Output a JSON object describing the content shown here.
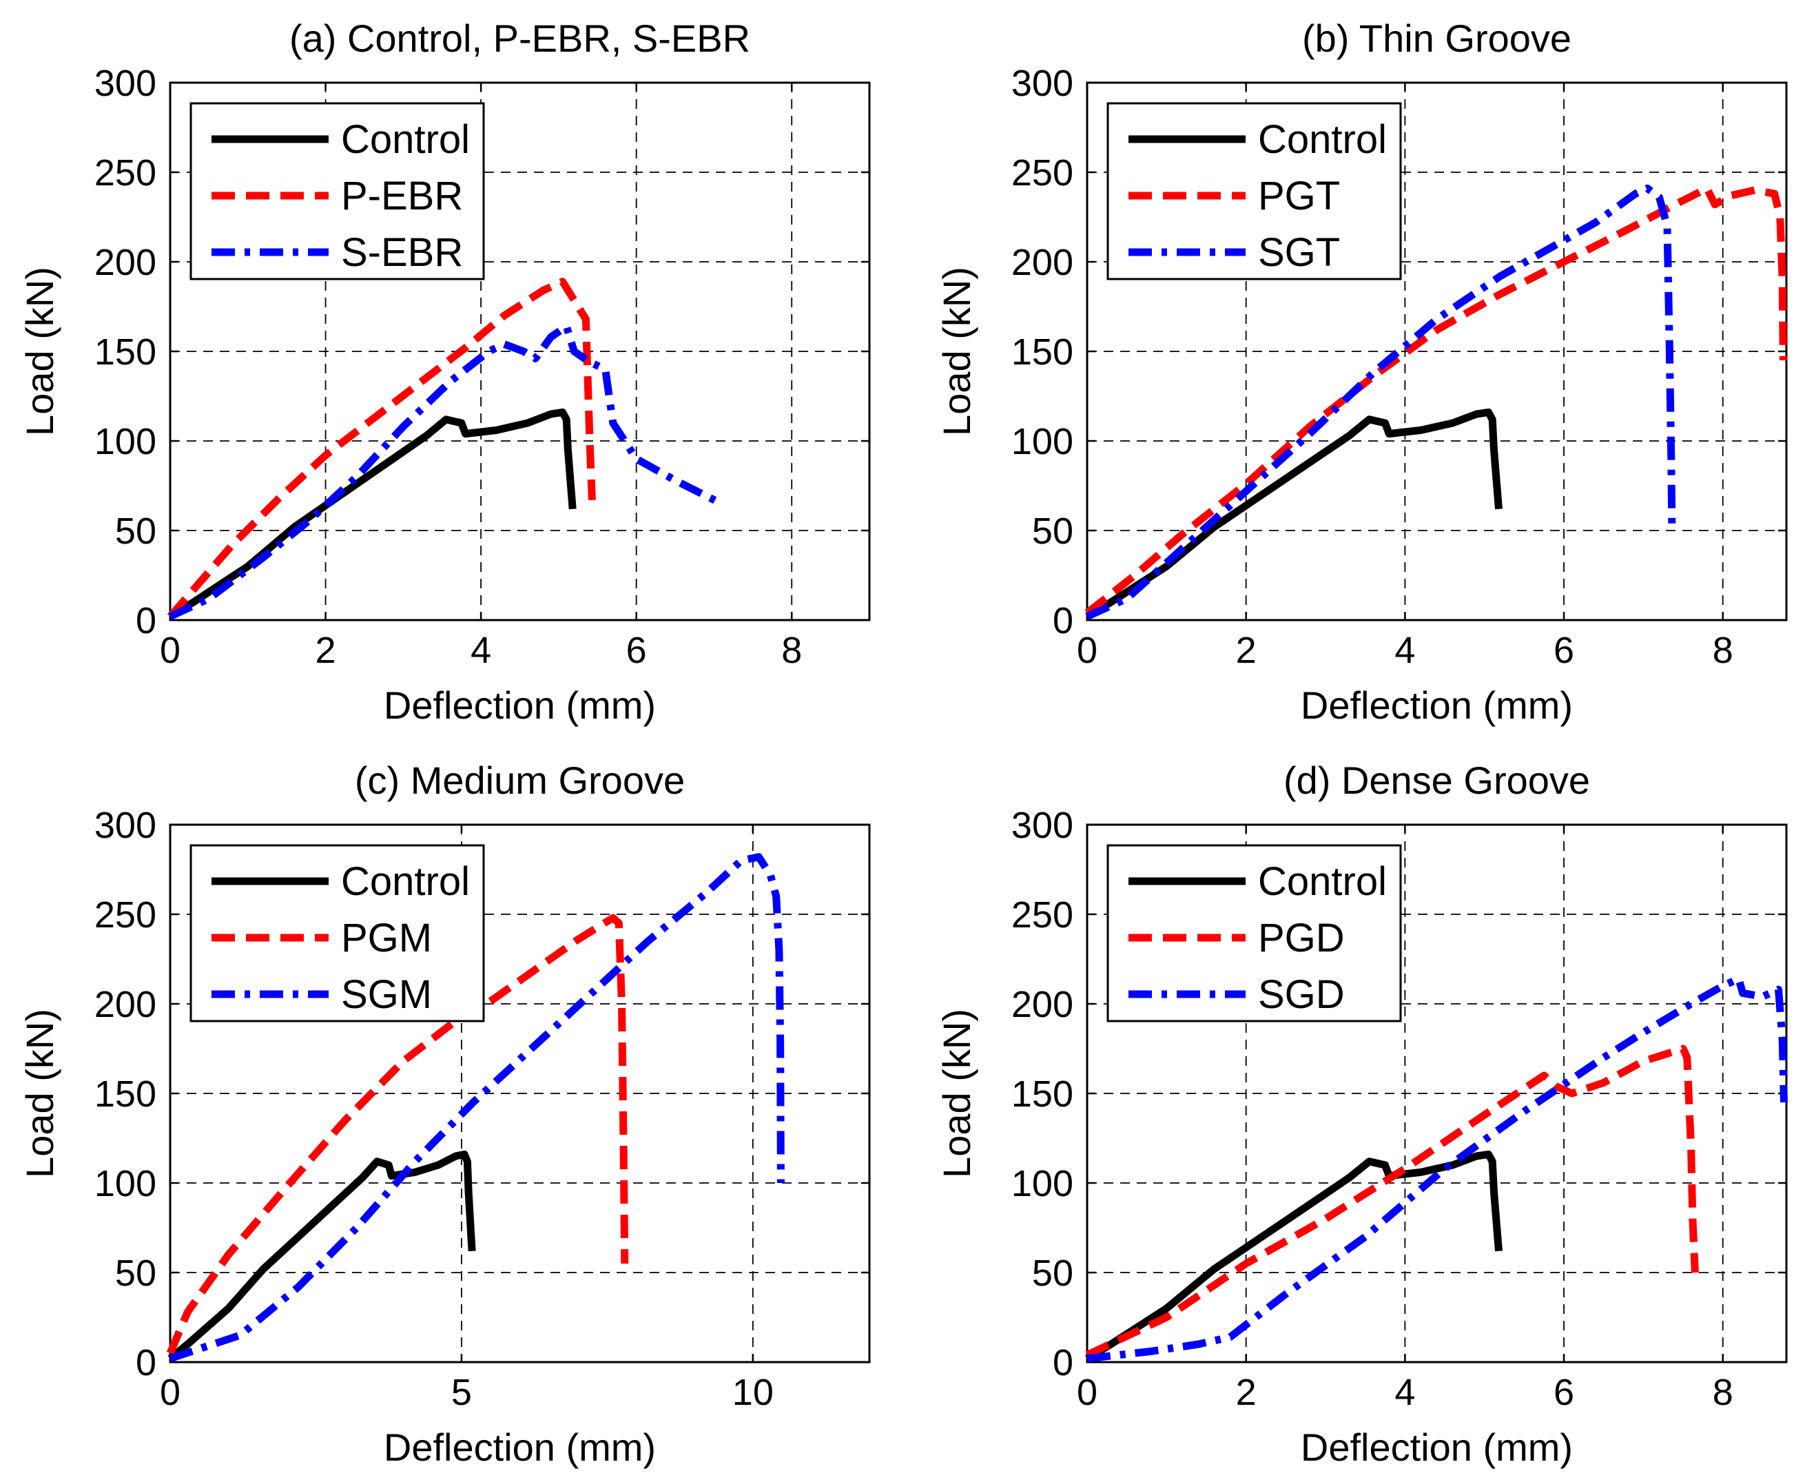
{
  "chart_data": [
    {
      "type": "line",
      "title": "(a) Control, P-EBR, S-EBR",
      "xlabel": "Deflection (mm)",
      "ylabel": "Load (kN)",
      "xlim": [
        0,
        9
      ],
      "ylim": [
        0,
        300
      ],
      "xticks": [
        0,
        2,
        4,
        6,
        8
      ],
      "yticks": [
        0,
        50,
        100,
        150,
        200,
        250,
        300
      ],
      "grid": true,
      "legend": "top-left",
      "series": [
        {
          "name": "Control",
          "color": "#000000",
          "style": "solid",
          "points": [
            [
              0,
              2
            ],
            [
              0.3,
              10
            ],
            [
              1,
              30
            ],
            [
              1.6,
              52
            ],
            [
              2.2,
              70
            ],
            [
              2.8,
              88
            ],
            [
              3.3,
              103
            ],
            [
              3.55,
              112
            ],
            [
              3.75,
              110
            ],
            [
              3.8,
              104
            ],
            [
              4.2,
              106
            ],
            [
              4.6,
              110
            ],
            [
              4.9,
              115
            ],
            [
              5.05,
              116
            ],
            [
              5.1,
              112
            ],
            [
              5.12,
              95
            ],
            [
              5.18,
              62
            ]
          ]
        },
        {
          "name": "P-EBR",
          "color": "#ff0000",
          "style": "dash",
          "points": [
            [
              0,
              2
            ],
            [
              0.2,
              12
            ],
            [
              0.8,
              42
            ],
            [
              1.4,
              68
            ],
            [
              2.0,
              92
            ],
            [
              2.6,
              112
            ],
            [
              3.2,
              132
            ],
            [
              3.8,
              152
            ],
            [
              4.3,
              170
            ],
            [
              4.8,
              184
            ],
            [
              5.05,
              189
            ],
            [
              5.15,
              182
            ],
            [
              5.35,
              168
            ],
            [
              5.4,
              100
            ],
            [
              5.43,
              67
            ]
          ]
        },
        {
          "name": "S-EBR",
          "color": "#0000ff",
          "style": "dashdot",
          "points": [
            [
              0,
              2
            ],
            [
              0.5,
              12
            ],
            [
              1.2,
              35
            ],
            [
              1.8,
              56
            ],
            [
              2.4,
              80
            ],
            [
              3.0,
              108
            ],
            [
              3.6,
              133
            ],
            [
              4.1,
              150
            ],
            [
              4.3,
              154
            ],
            [
              4.55,
              150
            ],
            [
              4.7,
              146
            ],
            [
              4.9,
              158
            ],
            [
              5.1,
              164
            ],
            [
              5.2,
              150
            ],
            [
              5.4,
              144
            ],
            [
              5.6,
              140
            ],
            [
              5.7,
              110
            ],
            [
              6.0,
              90
            ],
            [
              6.5,
              78
            ],
            [
              7.05,
              66
            ]
          ]
        }
      ]
    },
    {
      "type": "line",
      "title": "(b) Thin Groove",
      "xlabel": "Deflection (mm)",
      "ylabel": "Load (kN)",
      "xlim": [
        0,
        8.8
      ],
      "ylim": [
        0,
        300
      ],
      "xticks": [
        0,
        2,
        4,
        6,
        8
      ],
      "yticks": [
        0,
        50,
        100,
        150,
        200,
        250,
        300
      ],
      "grid": true,
      "legend": "top-left",
      "series": [
        {
          "name": "Control",
          "color": "#000000",
          "style": "solid",
          "points": [
            [
              0,
              2
            ],
            [
              0.3,
              10
            ],
            [
              1,
              30
            ],
            [
              1.6,
              52
            ],
            [
              2.2,
              70
            ],
            [
              2.8,
              88
            ],
            [
              3.3,
              103
            ],
            [
              3.55,
              112
            ],
            [
              3.75,
              110
            ],
            [
              3.8,
              104
            ],
            [
              4.2,
              106
            ],
            [
              4.6,
              110
            ],
            [
              4.9,
              115
            ],
            [
              5.05,
              116
            ],
            [
              5.1,
              112
            ],
            [
              5.12,
              95
            ],
            [
              5.18,
              62
            ]
          ]
        },
        {
          "name": "PGT",
          "color": "#ff0000",
          "style": "dash",
          "points": [
            [
              0,
              4
            ],
            [
              0.6,
              25
            ],
            [
              1.2,
              48
            ],
            [
              2.0,
              76
            ],
            [
              2.8,
              108
            ],
            [
              3.6,
              136
            ],
            [
              4.4,
              162
            ],
            [
              5.2,
              182
            ],
            [
              6.0,
              200
            ],
            [
              6.8,
              218
            ],
            [
              7.4,
              232
            ],
            [
              7.8,
              241
            ],
            [
              7.9,
              232
            ],
            [
              8.1,
              237
            ],
            [
              8.4,
              240
            ],
            [
              8.65,
              238
            ],
            [
              8.72,
              225
            ],
            [
              8.75,
              190
            ],
            [
              8.76,
              145
            ]
          ]
        },
        {
          "name": "SGT",
          "color": "#0000ff",
          "style": "dashdot",
          "points": [
            [
              0,
              2
            ],
            [
              0.5,
              12
            ],
            [
              1.2,
              40
            ],
            [
              2.0,
              72
            ],
            [
              2.8,
              104
            ],
            [
              3.6,
              138
            ],
            [
              4.4,
              168
            ],
            [
              5.2,
              192
            ],
            [
              5.8,
              207
            ],
            [
              6.4,
              222
            ],
            [
              6.9,
              238
            ],
            [
              7.05,
              241
            ],
            [
              7.2,
              236
            ],
            [
              7.3,
              220
            ],
            [
              7.33,
              150
            ],
            [
              7.35,
              90
            ],
            [
              7.36,
              50
            ]
          ]
        }
      ]
    },
    {
      "type": "line",
      "title": "(c) Medium Groove",
      "xlabel": "Deflection (mm)",
      "ylabel": "Load (kN)",
      "xlim": [
        0,
        12
      ],
      "ylim": [
        0,
        300
      ],
      "xticks": [
        0,
        5,
        10
      ],
      "yticks": [
        0,
        50,
        100,
        150,
        200,
        250,
        300
      ],
      "grid": true,
      "legend": "top-left",
      "series": [
        {
          "name": "Control",
          "color": "#000000",
          "style": "solid",
          "points": [
            [
              0,
              2
            ],
            [
              0.3,
              10
            ],
            [
              1,
              30
            ],
            [
              1.6,
              52
            ],
            [
              2.2,
              70
            ],
            [
              2.8,
              88
            ],
            [
              3.3,
              103
            ],
            [
              3.55,
              112
            ],
            [
              3.75,
              110
            ],
            [
              3.8,
              104
            ],
            [
              4.2,
              106
            ],
            [
              4.6,
              110
            ],
            [
              4.9,
              115
            ],
            [
              5.05,
              116
            ],
            [
              5.1,
              112
            ],
            [
              5.12,
              95
            ],
            [
              5.18,
              62
            ]
          ]
        },
        {
          "name": "PGM",
          "color": "#ff0000",
          "style": "dash",
          "points": [
            [
              0,
              5
            ],
            [
              0.3,
              28
            ],
            [
              1.0,
              60
            ],
            [
              2.0,
              98
            ],
            [
              3.0,
              135
            ],
            [
              4.0,
              168
            ],
            [
              5.0,
              193
            ],
            [
              5.3,
              197
            ],
            [
              6.0,
              213
            ],
            [
              7.0,
              236
            ],
            [
              7.6,
              248
            ],
            [
              7.7,
              245
            ],
            [
              7.75,
              200
            ],
            [
              7.78,
              120
            ],
            [
              7.8,
              55
            ]
          ]
        },
        {
          "name": "SGM",
          "color": "#0000ff",
          "style": "dashdot",
          "points": [
            [
              0,
              2
            ],
            [
              1.2,
              15
            ],
            [
              2.2,
              42
            ],
            [
              3.2,
              75
            ],
            [
              4.2,
              112
            ],
            [
              5.2,
              145
            ],
            [
              6.2,
              175
            ],
            [
              7.2,
              205
            ],
            [
              8.2,
              235
            ],
            [
              9.2,
              262
            ],
            [
              9.8,
              280
            ],
            [
              10.1,
              282
            ],
            [
              10.3,
              272
            ],
            [
              10.4,
              260
            ],
            [
              10.45,
              230
            ],
            [
              10.47,
              180
            ],
            [
              10.48,
              100
            ]
          ]
        }
      ]
    },
    {
      "type": "line",
      "title": "(d) Dense Groove",
      "xlabel": "Deflection (mm)",
      "ylabel": "Load (kN)",
      "xlim": [
        0,
        8.8
      ],
      "ylim": [
        0,
        300
      ],
      "xticks": [
        0,
        2,
        4,
        6,
        8
      ],
      "yticks": [
        0,
        50,
        100,
        150,
        200,
        250,
        300
      ],
      "grid": true,
      "legend": "top-left",
      "series": [
        {
          "name": "Control",
          "color": "#000000",
          "style": "solid",
          "points": [
            [
              0,
              2
            ],
            [
              0.3,
              10
            ],
            [
              1,
              30
            ],
            [
              1.6,
              52
            ],
            [
              2.2,
              70
            ],
            [
              2.8,
              88
            ],
            [
              3.3,
              103
            ],
            [
              3.55,
              112
            ],
            [
              3.75,
              110
            ],
            [
              3.8,
              104
            ],
            [
              4.2,
              106
            ],
            [
              4.6,
              110
            ],
            [
              4.9,
              115
            ],
            [
              5.05,
              116
            ],
            [
              5.1,
              112
            ],
            [
              5.12,
              95
            ],
            [
              5.18,
              62
            ]
          ]
        },
        {
          "name": "PGD",
          "color": "#ff0000",
          "style": "dash",
          "points": [
            [
              0,
              4
            ],
            [
              1.0,
              25
            ],
            [
              2.0,
              55
            ],
            [
              3.0,
              80
            ],
            [
              4.0,
              108
            ],
            [
              5.0,
              138
            ],
            [
              5.75,
              160
            ],
            [
              5.9,
              154
            ],
            [
              6.1,
              150
            ],
            [
              6.5,
              156
            ],
            [
              7.0,
              168
            ],
            [
              7.5,
              175
            ],
            [
              7.55,
              170
            ],
            [
              7.6,
              120
            ],
            [
              7.62,
              80
            ],
            [
              7.65,
              50
            ]
          ]
        },
        {
          "name": "SGD",
          "color": "#0000ff",
          "style": "dashdot",
          "points": [
            [
              0,
              2
            ],
            [
              0.8,
              6
            ],
            [
              1.4,
              10
            ],
            [
              1.8,
              14
            ],
            [
              2.5,
              38
            ],
            [
              3.5,
              70
            ],
            [
              4.5,
              108
            ],
            [
              5.5,
              140
            ],
            [
              6.0,
              155
            ],
            [
              6.5,
              170
            ],
            [
              7.0,
              184
            ],
            [
              7.6,
              200
            ],
            [
              8.0,
              210
            ],
            [
              8.2,
              214
            ],
            [
              8.25,
              206
            ],
            [
              8.5,
              204
            ],
            [
              8.7,
              208
            ],
            [
              8.75,
              180
            ],
            [
              8.77,
              145
            ]
          ]
        }
      ]
    }
  ]
}
